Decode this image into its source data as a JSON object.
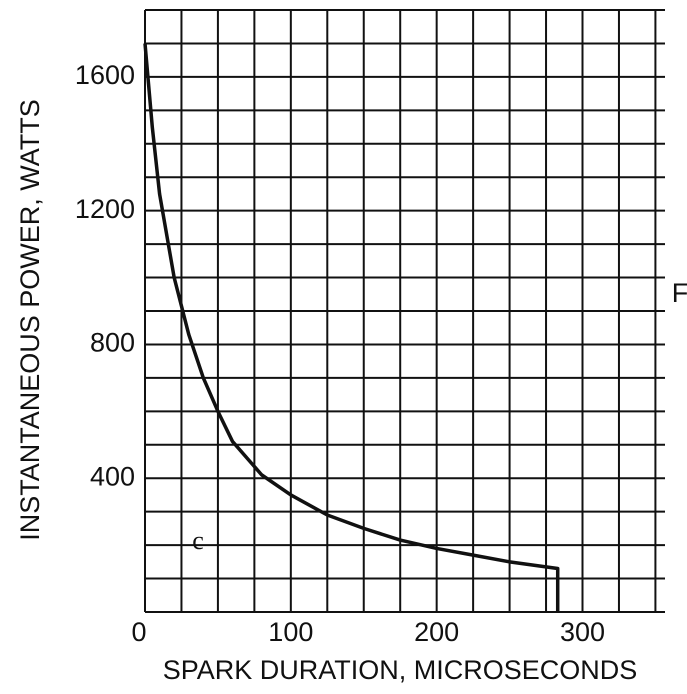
{
  "chart_data": {
    "type": "line",
    "x_label": "SPARK DURATION, MICROSECONDS",
    "y_label": "INSTANTANEOUS POWER, WATTS",
    "annotations": [
      "c",
      "F"
    ],
    "x": [
      0,
      5,
      10,
      20,
      30,
      40,
      50,
      60,
      80,
      100,
      125,
      150,
      175,
      200,
      225,
      250,
      283,
      283
    ],
    "series": [
      {
        "color": "#111111",
        "values": [
          1700,
          1450,
          1250,
          1000,
          830,
          700,
          600,
          510,
          410,
          350,
          290,
          250,
          215,
          190,
          170,
          150,
          130,
          0
        ]
      }
    ],
    "xlim": [
      0,
      360
    ],
    "ylim": [
      0,
      1800
    ],
    "xticks": [
      0,
      100,
      200,
      300
    ],
    "yticks": [
      400,
      800,
      1200,
      1600
    ],
    "xgrid": [
      0,
      25,
      50,
      75,
      100,
      125,
      150,
      175,
      200,
      225,
      250,
      275,
      300,
      325,
      350
    ],
    "ygrid": [
      0,
      100,
      200,
      300,
      400,
      500,
      600,
      700,
      800,
      900,
      1000,
      1100,
      1200,
      1300,
      1400,
      1500,
      1600,
      1700,
      1800
    ],
    "grid": true
  }
}
